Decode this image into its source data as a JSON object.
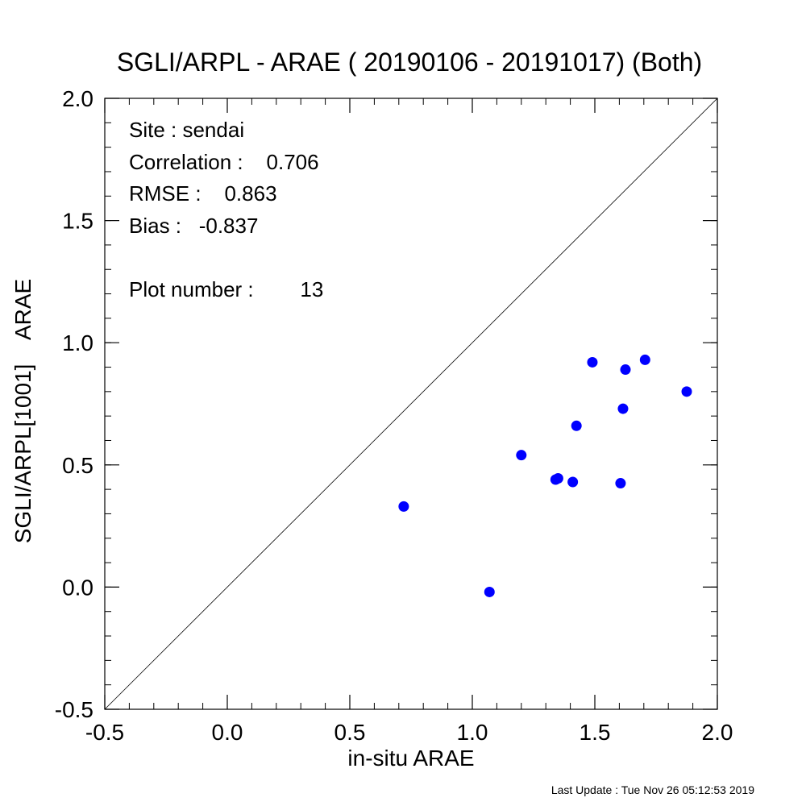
{
  "chart_data": {
    "type": "scatter",
    "title": "SGLI/ARPL - ARAE ( 20190106 - 20191017) (Both)",
    "xlabel": "in-situ ARAE",
    "ylabel": "SGLI/ARPL[1001]    ARAE",
    "xlim": [
      -0.5,
      2.0
    ],
    "ylim": [
      -0.5,
      2.0
    ],
    "x_ticks": [
      -0.5,
      0.0,
      0.5,
      1.0,
      1.5,
      2.0
    ],
    "y_ticks": [
      -0.5,
      0.0,
      0.5,
      1.0,
      1.5,
      2.0
    ],
    "x_tick_labels": [
      "-0.5",
      "0.0",
      "0.5",
      "1.0",
      "1.5",
      "2.0"
    ],
    "y_tick_labels": [
      "-0.5",
      "0.0",
      "0.5",
      "1.0",
      "1.5",
      "2.0"
    ],
    "minor_tick_step": 0.1,
    "reference_line": "1:1",
    "grid": false,
    "marker_color": "#0000ff",
    "series": [
      {
        "x": [
          0.72,
          1.07,
          1.2,
          1.34,
          1.35,
          1.41,
          1.425,
          1.49,
          1.605,
          1.615,
          1.625,
          1.705,
          1.875
        ],
        "y": [
          0.33,
          -0.02,
          0.54,
          0.44,
          0.445,
          0.43,
          0.66,
          0.92,
          0.425,
          0.73,
          0.89,
          0.93,
          0.8
        ]
      }
    ],
    "annotations": {
      "site": "Site : sendai",
      "correlation": "Correlation :    0.706",
      "rmse": "RMSE :    0.863",
      "bias": "Bias :   -0.837",
      "plot_number": "Plot number :        13"
    }
  },
  "footer": {
    "last_update": "Last Update : Tue Nov 26 05:12:53 2019"
  }
}
